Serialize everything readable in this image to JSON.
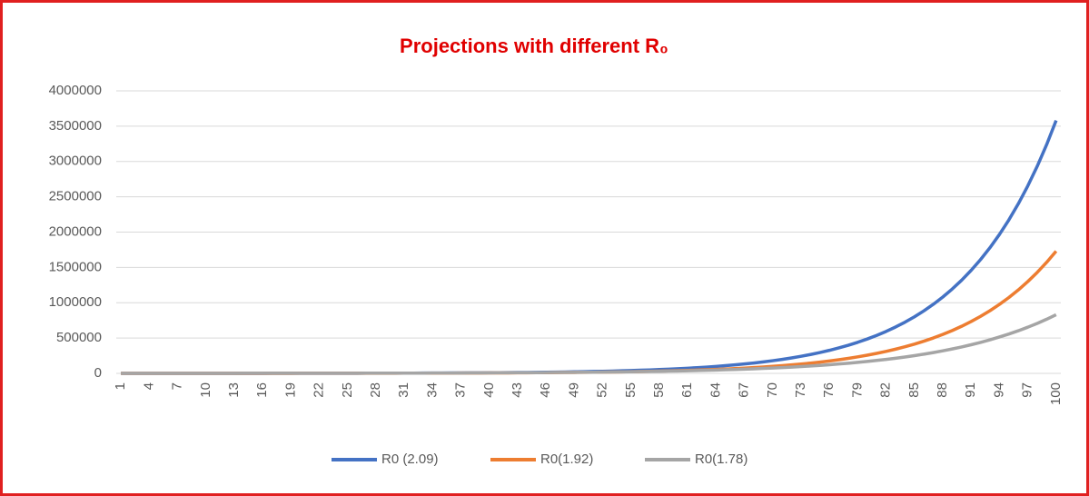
{
  "chart_data": {
    "type": "line",
    "title": "Projections with different R₀",
    "categories": [
      1,
      null,
      null,
      4,
      null,
      null,
      7,
      null,
      null,
      10,
      null,
      null,
      13,
      null,
      null,
      16,
      null,
      null,
      19,
      null,
      null,
      22,
      null,
      null,
      25,
      null,
      null,
      28,
      null,
      null,
      31,
      null,
      null,
      34,
      null,
      null,
      37,
      null,
      null,
      40,
      null,
      null,
      43,
      null,
      null,
      46,
      null,
      null,
      49,
      null,
      null,
      52,
      null,
      null,
      55,
      null,
      null,
      58,
      null,
      null,
      61,
      null,
      null,
      64,
      null,
      null,
      67,
      null,
      null,
      70,
      null,
      null,
      73,
      null,
      null,
      76,
      null,
      null,
      79,
      null,
      null,
      82,
      null,
      null,
      85,
      null,
      null,
      88,
      null,
      null,
      91,
      null,
      null,
      94,
      null,
      null,
      97,
      null,
      null,
      100
    ],
    "series": [
      {
        "name": "R0 (2.09)",
        "color": "#4472c4",
        "values": [
          180,
          200,
          220,
          240,
          270,
          300,
          330,
          370,
          410,
          450,
          500,
          550,
          610,
          670,
          740,
          820,
          910,
          1000,
          1110,
          1230,
          1360,
          1500,
          1660,
          1830,
          2020,
          2230,
          2460,
          2720,
          3000,
          3320,
          3670,
          4050,
          4470,
          4940,
          5460,
          6030,
          6660,
          7360,
          8130,
          8980,
          9920,
          10960,
          12110,
          13380,
          14780,
          16330,
          18050,
          19940,
          22030,
          24340,
          26900,
          29720,
          32840,
          36290,
          40100,
          44310,
          48960,
          54100,
          59780,
          66060,
          72990,
          80650,
          89110,
          98460,
          108790,
          120210,
          132830,
          146770,
          162180,
          179210,
          198020,
          218810,
          241780,
          267160,
          295200,
          326190,
          360430,
          398260,
          440070,
          486270,
          537310,
          593710,
          656030,
          724890,
          800980,
          885060,
          977970,
          1080630,
          1194070,
          1319410,
          1457910,
          1610950,
          1780060,
          1966920,
          2173390,
          2401540,
          2653640,
          2932200,
          3240000,
          3580000
        ]
      },
      {
        "name": "R0(1.92)",
        "color": "#ed7d31",
        "values": [
          140,
          150,
          170,
          180,
          200,
          220,
          240,
          270,
          300,
          330,
          360,
          390,
          430,
          480,
          520,
          580,
          640,
          700,
          770,
          850,
          930,
          1020,
          1130,
          1240,
          1360,
          1500,
          1650,
          1810,
          1990,
          2190,
          2410,
          2650,
          2920,
          3210,
          3530,
          3880,
          4270,
          4700,
          5170,
          5680,
          6250,
          6880,
          7560,
          8320,
          9150,
          10070,
          11070,
          12180,
          13400,
          14740,
          16210,
          17830,
          19620,
          21580,
          23740,
          26110,
          28720,
          31590,
          34750,
          38230,
          42050,
          46250,
          50880,
          55970,
          61560,
          67720,
          74490,
          81940,
          90140,
          99150,
          109060,
          119970,
          131960,
          145160,
          159680,
          175650,
          193210,
          212530,
          233780,
          257160,
          282870,
          311160,
          342270,
          376500,
          414150,
          455570,
          501120,
          551230,
          606350,
          666980,
          733680,
          807050,
          887760,
          976540,
          1074190,
          1181610,
          1299770,
          1429750,
          1572730,
          1730000
        ]
      },
      {
        "name": "R0(1.78)",
        "color": "#a5a5a5",
        "values": [
          310,
          340,
          370,
          400,
          430,
          460,
          500,
          540,
          590,
          640,
          690,
          750,
          810,
          880,
          950,
          1030,
          1110,
          1200,
          1300,
          1410,
          1530,
          1660,
          1800,
          1950,
          2110,
          2280,
          2470,
          2680,
          2900,
          3140,
          3400,
          3680,
          3980,
          4310,
          4670,
          5060,
          5480,
          5940,
          6430,
          6960,
          7540,
          8170,
          8850,
          9580,
          10370,
          11230,
          12160,
          13170,
          14260,
          15440,
          16720,
          18110,
          19610,
          21240,
          23000,
          24910,
          26980,
          29220,
          31640,
          34260,
          37100,
          40180,
          43510,
          47120,
          51030,
          55260,
          59840,
          64800,
          70180,
          76000,
          82300,
          89130,
          96520,
          104530,
          113200,
          122590,
          132760,
          143770,
          155690,
          168610,
          182600,
          197750,
          214150,
          231910,
          251150,
          271980,
          294540,
          318970,
          345430,
          374090,
          405120,
          438730,
          475130,
          514540,
          557220,
          603440,
          653500,
          707710,
          766420,
          830000
        ]
      }
    ],
    "ylim": [
      0,
      4000000
    ],
    "yticks": [
      0,
      500000,
      1000000,
      1500000,
      2000000,
      2500000,
      3000000,
      3500000,
      4000000
    ],
    "grid": true,
    "legend": "bottom"
  }
}
